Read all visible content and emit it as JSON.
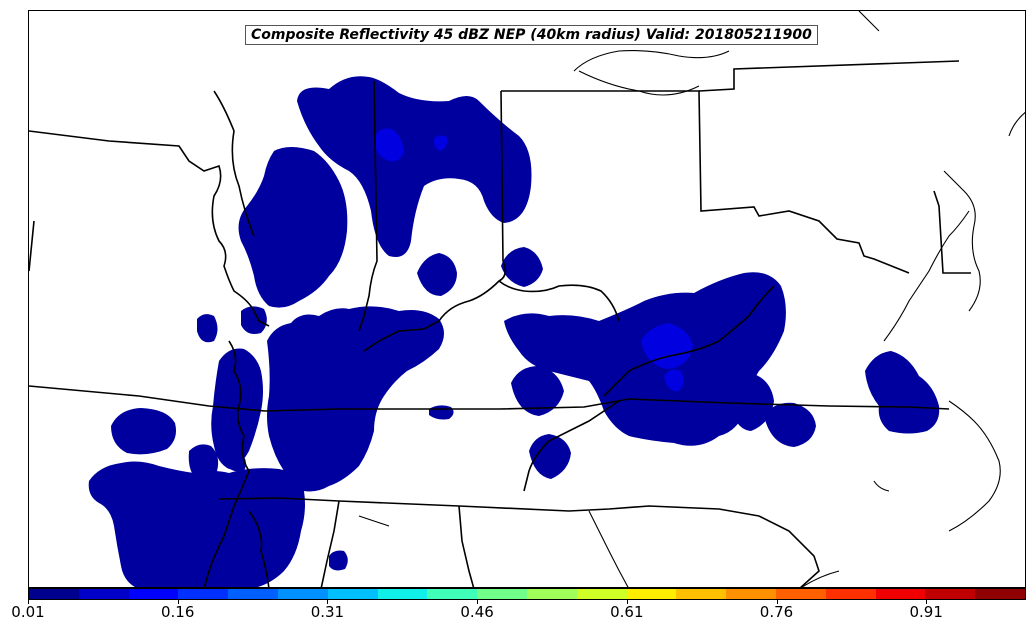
{
  "title": "Composite Reflectivity 45 dBZ NEP (40km radius) Valid: 201805211900",
  "colorbar": {
    "colors": [
      "#00008f",
      "#0000c8",
      "#0000ff",
      "#0030ff",
      "#0060ff",
      "#0090ff",
      "#00c0ff",
      "#10f0e8",
      "#40ffb8",
      "#70ff88",
      "#a0ff58",
      "#d0ff28",
      "#ffee00",
      "#ffc000",
      "#ff9000",
      "#ff6000",
      "#ff3000",
      "#f00000",
      "#c00000",
      "#900000"
    ],
    "tick_labels": [
      "0.01",
      "0.16",
      "0.31",
      "0.46",
      "0.61",
      "0.76",
      "0.91"
    ],
    "tick_values": [
      0.01,
      0.16,
      0.31,
      0.46,
      0.61,
      0.76,
      0.91
    ],
    "range": [
      0.01,
      1.01
    ]
  },
  "map": {
    "land_color": "#ffffff",
    "border_color": "#000000",
    "probability_colors": {
      "low": "#00009e",
      "mid": "#0000e0"
    }
  }
}
